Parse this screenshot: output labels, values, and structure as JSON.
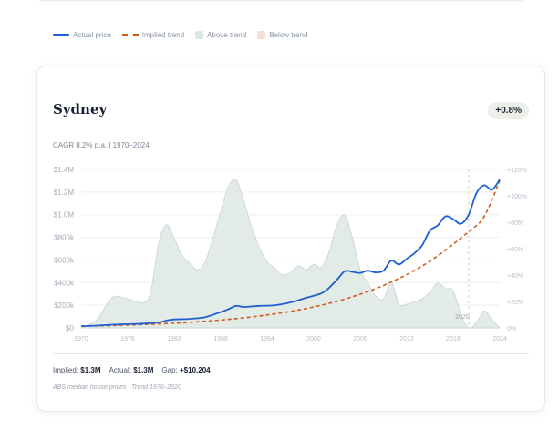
{
  "legend": {
    "actual": "Actual price",
    "implied": "Implied trend",
    "above": "Above trend",
    "below": "Below trend"
  },
  "colors": {
    "actual": "#1f5fd0",
    "implied": "#d25a1f",
    "above_fill": "#dde7e1",
    "below_fill": "#f8dcdc",
    "grid": "#eceef2",
    "axis_text": "#a3aab6"
  },
  "card": {
    "city": "Sydney",
    "badge": "+0.8%",
    "subtitle": "CAGR 8.2% p.a. | 1970–2024",
    "stats": {
      "implied_label": "Implied:",
      "implied_value": "$1.3M",
      "actual_label": "Actual:",
      "actual_value": "$1.3M",
      "gap_label": "Gap:",
      "gap_value": "+$10,204"
    },
    "source": "ABS median house prices | Trend 1970–2020"
  },
  "chart_data": {
    "type": "line",
    "x_ticks": [
      "1970",
      "1976",
      "1982",
      "1988",
      "1994",
      "2000",
      "2006",
      "2012",
      "2018",
      "2024"
    ],
    "y_ticks_left": [
      "$0",
      "$200k",
      "$400k",
      "$600k",
      "$800k",
      "$1.0M",
      "$1.2M",
      "$1.4M"
    ],
    "y_ticks_right": [
      "0%",
      "+20%",
      "+40%",
      "+60%",
      "+80%",
      "+100%",
      "+120%"
    ],
    "xlim": [
      1970,
      2024
    ],
    "ylim": [
      0,
      1400000
    ],
    "ylim_right": [
      0,
      120
    ],
    "annotation": {
      "x": 2020,
      "label": "2020"
    },
    "series": [
      {
        "name": "Actual price",
        "axis": "left",
        "x": [
          1970,
          1972,
          1974,
          1976,
          1978,
          1980,
          1981,
          1982,
          1984,
          1986,
          1988,
          1989,
          1990,
          1991,
          1993,
          1995,
          1997,
          1999,
          2001,
          2002,
          2003,
          2004,
          2005,
          2006,
          2007,
          2008,
          2009,
          2010,
          2011,
          2012,
          2013,
          2014,
          2015,
          2016,
          2017,
          2018,
          2019,
          2020,
          2021,
          2022,
          2023,
          2024
        ],
        "y": [
          15000,
          20000,
          28000,
          33000,
          38000,
          48000,
          65000,
          75000,
          80000,
          95000,
          140000,
          165000,
          195000,
          185000,
          195000,
          200000,
          225000,
          265000,
          305000,
          355000,
          425000,
          500000,
          495000,
          485000,
          505000,
          490000,
          505000,
          595000,
          560000,
          610000,
          660000,
          730000,
          860000,
          905000,
          985000,
          960000,
          920000,
          1000000,
          1190000,
          1260000,
          1220000,
          1310000
        ]
      },
      {
        "name": "Implied trend",
        "axis": "left",
        "x": [
          1970,
          1975,
          1980,
          1985,
          1990,
          1995,
          2000,
          2005,
          2010,
          2015,
          2020,
          2022,
          2024
        ],
        "y": [
          15000,
          23000,
          35000,
          54000,
          82000,
          124000,
          185000,
          275000,
          405000,
          590000,
          850000,
          985000,
          1300000
        ]
      },
      {
        "name": "Above trend",
        "axis": "right",
        "x": [
          1970,
          1972,
          1974,
          1976,
          1978,
          1979,
          1980,
          1981,
          1982,
          1983,
          1984,
          1985,
          1986,
          1987,
          1988,
          1989,
          1990,
          1991,
          1992,
          1993,
          1994,
          1995,
          1996,
          1997,
          1998,
          1999,
          2000,
          2001,
          2002,
          2003,
          2004,
          2005,
          2006,
          2007,
          2008,
          2009,
          2010,
          2011,
          2012,
          2013,
          2014,
          2015,
          2016,
          2017,
          2018,
          2019,
          2020,
          2021,
          2022,
          2023,
          2024
        ],
        "y": [
          0,
          6,
          23,
          22,
          19,
          28,
          64,
          78,
          68,
          55,
          49,
          44,
          50,
          68,
          88,
          107,
          112,
          96,
          76,
          61,
          50,
          45,
          40,
          42,
          47,
          44,
          48,
          46,
          58,
          78,
          85,
          68,
          44,
          34,
          24,
          22,
          35,
          18,
          18,
          20,
          22,
          27,
          34,
          30,
          28,
          10,
          0,
          4,
          13,
          6,
          0
        ]
      }
    ]
  }
}
